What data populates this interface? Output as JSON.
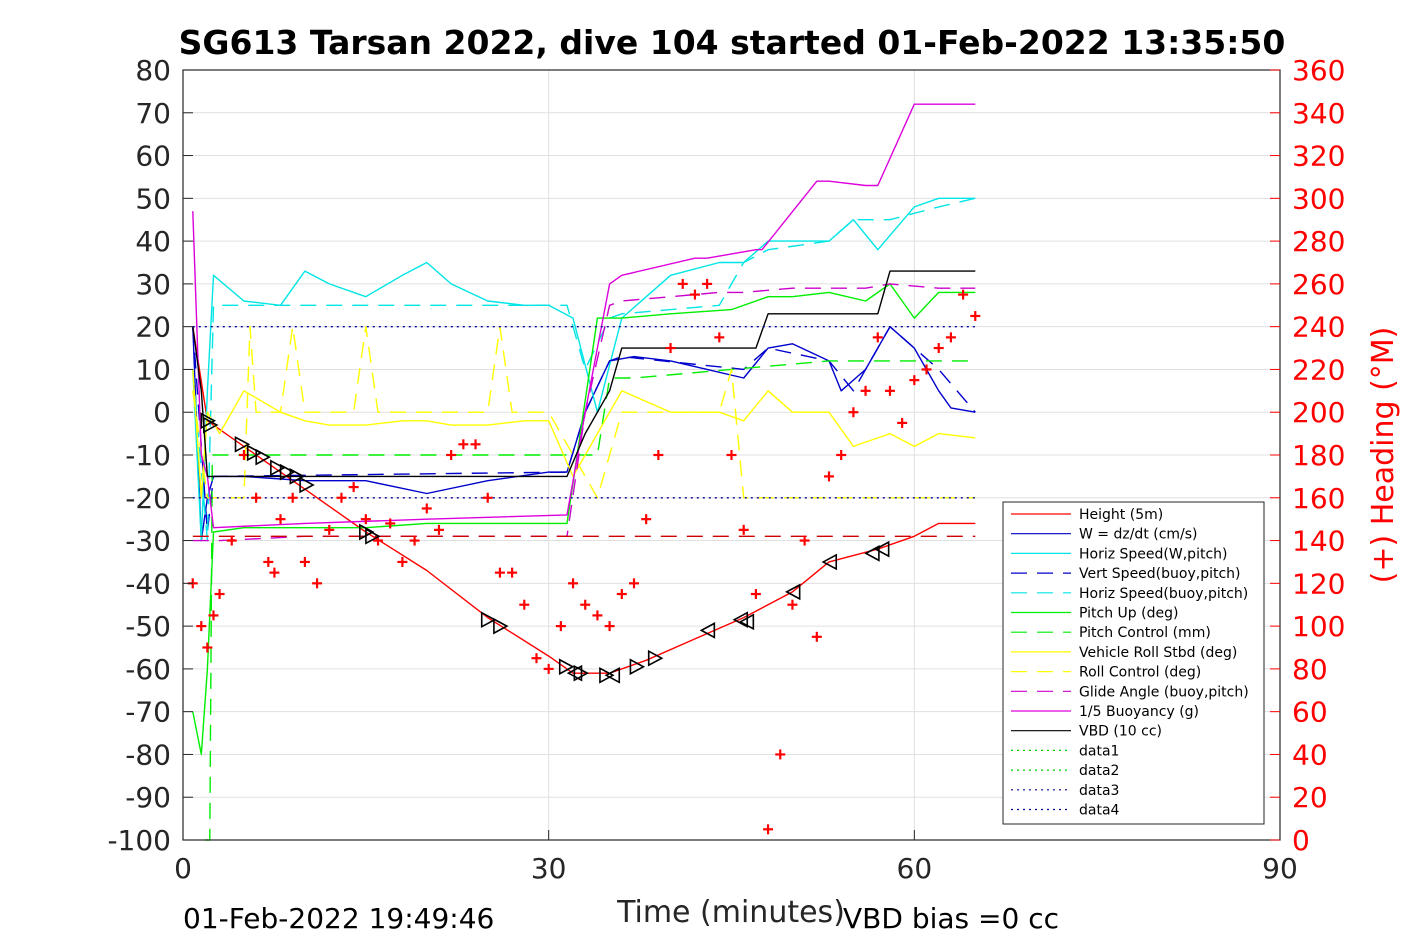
{
  "chart_data": {
    "type": "line",
    "title": "SG613 Tarsan 2022, dive 104 started 01-Feb-2022 13:35:50",
    "xlabel": "Time (minutes)",
    "ylabel": "",
    "y2label": "(+) Heading (°M)",
    "xlim": [
      0,
      90
    ],
    "ylim": [
      -100,
      80
    ],
    "y2lim": [
      0,
      360
    ],
    "xticks": [
      "0",
      "30",
      "60",
      "90"
    ],
    "yticks": [
      "80",
      "70",
      "60",
      "50",
      "40",
      "30",
      "20",
      "10",
      "0",
      "-10",
      "-20",
      "-30",
      "-40",
      "-50",
      "-60",
      "-70",
      "-80",
      "-90",
      "-100"
    ],
    "y2ticks": [
      "360",
      "340",
      "320",
      "300",
      "280",
      "260",
      "240",
      "220",
      "200",
      "180",
      "160",
      "140",
      "120",
      "100",
      "80",
      "60",
      "40",
      "20",
      "0"
    ],
    "grid": true,
    "legend_position": "bottom-right",
    "footer_left": "01-Feb-2022 19:49:46",
    "footer_right": "VBD bias =0 cc",
    "series": [
      {
        "name": "Height (5m)",
        "color": "#ff0000",
        "style": "solid",
        "x": [
          0.8,
          2,
          5,
          10,
          15,
          20,
          25,
          30,
          32,
          35,
          38,
          42,
          46,
          50,
          53,
          57,
          60,
          62,
          65
        ],
        "y": [
          20,
          -2,
          -8,
          -18,
          -28,
          -37,
          -48,
          -57,
          -61,
          -61,
          -58,
          -53,
          -48,
          -42,
          -35,
          -32,
          -29,
          -26,
          -26
        ]
      },
      {
        "name": "W = dz/dt (cm/s)",
        "color": "#0000cc",
        "style": "solid",
        "x": [
          0.8,
          1.5,
          2,
          2.5,
          5,
          10,
          15,
          20,
          25,
          30,
          31.5,
          33,
          35,
          37,
          40,
          43,
          46,
          48,
          50,
          53,
          54,
          56,
          58,
          60,
          62,
          63,
          65
        ],
        "y": [
          20,
          -30,
          -20,
          -15,
          -15,
          -16,
          -16,
          -19,
          -16,
          -14,
          -14,
          0,
          12,
          13,
          12,
          10,
          8,
          15,
          16,
          12,
          5,
          10,
          20,
          15,
          5,
          1,
          0
        ]
      },
      {
        "name": "Horiz Speed(W,pitch)",
        "color": "#00e5e5",
        "style": "solid",
        "x": [
          0.8,
          1.5,
          2,
          2.5,
          5,
          8,
          10,
          12,
          15,
          18,
          20,
          22,
          25,
          28,
          30,
          32,
          34,
          36,
          40,
          44,
          46,
          48,
          50,
          53,
          55,
          57,
          60,
          62,
          65
        ],
        "y": [
          10,
          -30,
          5,
          32,
          26,
          25,
          33,
          30,
          27,
          32,
          35,
          30,
          26,
          25,
          25,
          22,
          0,
          22,
          32,
          35,
          35,
          40,
          40,
          40,
          45,
          38,
          48,
          50,
          50
        ]
      },
      {
        "name": "Vert Speed(buoy,pitch)",
        "color": "#0000cc",
        "style": "dash",
        "x": [
          0.8,
          2,
          2.5,
          31.5,
          33,
          35,
          36,
          46,
          48,
          53,
          55,
          58,
          62,
          65
        ],
        "y": [
          20,
          -28,
          -15,
          -14,
          0,
          12,
          13,
          10,
          15,
          12,
          5,
          20,
          10,
          0
        ]
      },
      {
        "name": "Horiz Speed(buoy,pitch)",
        "color": "#00e5e5",
        "style": "dash",
        "x": [
          0.8,
          2,
          2.5,
          10,
          31.5,
          33,
          35,
          36,
          44,
          46,
          48,
          53,
          55,
          58,
          62,
          65
        ],
        "y": [
          10,
          -30,
          25,
          25,
          25,
          10,
          22,
          23,
          25,
          35,
          38,
          40,
          45,
          45,
          48,
          50
        ]
      },
      {
        "name": "Pitch Up (deg)",
        "color": "#00ee00",
        "style": "solid",
        "x": [
          0.8,
          1.5,
          2,
          2.5,
          5,
          10,
          15,
          20,
          25,
          30,
          31.5,
          34,
          36,
          40,
          45,
          48,
          50,
          53,
          56,
          58,
          60,
          62,
          65
        ],
        "y": [
          -70,
          -80,
          -60,
          -28,
          -27,
          -27,
          -27,
          -26,
          -26,
          -26,
          -26,
          22,
          22,
          23,
          24,
          27,
          27,
          28,
          26,
          30,
          22,
          28,
          28
        ]
      },
      {
        "name": "Pitch Control (mm)",
        "color": "#00ee00",
        "style": "dash",
        "x": [
          1.8,
          2.2,
          2.4,
          2.6,
          34,
          35,
          37,
          53,
          55,
          65
        ],
        "y": [
          -100,
          -100,
          -10,
          -10,
          -10,
          8,
          8,
          12,
          12,
          12
        ]
      },
      {
        "name": "Vehicle Roll Stbd (deg)",
        "color": "#ffff00",
        "style": "solid",
        "x": [
          0.8,
          1.5,
          2,
          3,
          5,
          8,
          10,
          12,
          15,
          18,
          20,
          22,
          25,
          28,
          30,
          32,
          34,
          36,
          40,
          44,
          46,
          48,
          50,
          53,
          55,
          58,
          60,
          62,
          65
        ],
        "y": [
          10,
          -20,
          0,
          -5,
          5,
          0,
          -2,
          -3,
          -3,
          -2,
          -2,
          -3,
          -3,
          -2,
          -2,
          -15,
          -5,
          5,
          0,
          0,
          -2,
          5,
          0,
          0,
          -8,
          -5,
          -8,
          -5,
          -6
        ]
      },
      {
        "name": "Roll Control (deg)",
        "color": "#ffff00",
        "style": "dash",
        "x": [
          0.8,
          2,
          5,
          5.5,
          6,
          8,
          9,
          10,
          14,
          15,
          16,
          25,
          26,
          27,
          30,
          34,
          36,
          37,
          44,
          45,
          46,
          48,
          65
        ],
        "y": [
          5,
          -20,
          -20,
          20,
          0,
          0,
          20,
          0,
          0,
          20,
          0,
          0,
          20,
          0,
          0,
          -20,
          0,
          0,
          0,
          10,
          -20,
          -20,
          -20
        ]
      },
      {
        "name": "Glide Angle (buoy,pitch)",
        "color": "#cc00cc",
        "style": "dash",
        "x": [
          0.8,
          2,
          3,
          10,
          20,
          30,
          31.5,
          33,
          35,
          36,
          40,
          44,
          46,
          50,
          53,
          56,
          58,
          62,
          65
        ],
        "y": [
          -30,
          -30,
          -30,
          -29,
          -29,
          -29,
          -29,
          0,
          25,
          26,
          27,
          28,
          28,
          29,
          29,
          29,
          30,
          29,
          29
        ]
      },
      {
        "name": "1/5 Buoyancy (g)",
        "color": "#dd00dd",
        "style": "solid",
        "x": [
          0.8,
          1.5,
          2,
          2.5,
          10,
          20,
          31.5,
          33,
          35,
          36,
          42,
          43,
          47,
          47.5,
          52,
          53,
          56,
          57,
          60,
          65
        ],
        "y": [
          47,
          -10,
          -15,
          -27,
          -26,
          -25,
          -24,
          0,
          30,
          32,
          36,
          36,
          38,
          38,
          54,
          54,
          53,
          53,
          72,
          72
        ]
      },
      {
        "name": "VBD (10 cc)",
        "color": "#000000",
        "style": "solid",
        "x": [
          0.8,
          1.5,
          2,
          4,
          10,
          20,
          31.5,
          33,
          35,
          36,
          42,
          43,
          47,
          48,
          52,
          53,
          56,
          57,
          58,
          65
        ],
        "y": [
          20,
          5,
          -15,
          -15,
          -15,
          -15,
          -15,
          -5,
          5,
          15,
          15,
          15,
          15,
          23,
          23,
          23,
          23,
          23,
          33,
          33
        ]
      },
      {
        "name": "data1",
        "color": "#00cc00",
        "style": "dot",
        "x": [],
        "y": []
      },
      {
        "name": "data2",
        "color": "#00cc00",
        "style": "dot",
        "x": [],
        "y": []
      },
      {
        "name": "data3",
        "color": "#000099",
        "style": "dot",
        "x": [
          0.8,
          65
        ],
        "y": [
          20,
          20
        ]
      },
      {
        "name": "data4",
        "color": "#000099",
        "style": "dot",
        "x": [
          0.8,
          65
        ],
        "y": [
          -20,
          -20
        ]
      },
      {
        "name": "",
        "color": "#cc0000",
        "style": "dash",
        "x": [
          0.8,
          65
        ],
        "y": [
          -29,
          -29
        ]
      }
    ],
    "heading": {
      "color": "#ff0000",
      "marker": "+",
      "x": [
        0.8,
        1.5,
        2,
        2.5,
        3,
        4,
        5,
        6,
        7,
        7.5,
        8,
        9,
        10,
        11,
        12,
        13,
        14,
        15,
        16,
        17,
        18,
        19,
        20,
        21,
        22,
        23,
        24,
        25,
        26,
        27,
        28,
        29,
        30,
        31,
        32,
        33,
        34,
        35,
        36,
        37,
        38,
        39,
        40,
        41,
        42,
        43,
        44,
        45,
        46,
        47,
        48,
        49,
        50,
        51,
        52,
        53,
        54,
        55,
        56,
        57,
        58,
        59,
        60,
        61,
        62,
        63,
        64,
        65
      ],
      "y": [
        120,
        100,
        90,
        105,
        115,
        140,
        180,
        160,
        130,
        125,
        150,
        160,
        130,
        120,
        145,
        160,
        165,
        150,
        140,
        148,
        130,
        140,
        155,
        145,
        180,
        185,
        185,
        160,
        125,
        125,
        110,
        85,
        80,
        100,
        120,
        110,
        105,
        100,
        115,
        120,
        150,
        180,
        230,
        260,
        255,
        260,
        235,
        180,
        145,
        115,
        5,
        40,
        110,
        140,
        95,
        170,
        180,
        200,
        210,
        235,
        210,
        195,
        215,
        220,
        230,
        235,
        255,
        245
      ]
    },
    "markers": {
      "color": "#000000",
      "dive_x": [
        2,
        2.2,
        4.8,
        5.8,
        6.5,
        7.7,
        8.5,
        9.3,
        10.1,
        15,
        15.5,
        25,
        26,
        31.4,
        32.6,
        34.7,
        37.2,
        38.7
      ],
      "dive_y": [
        -2,
        -3,
        -7.5,
        -9.5,
        -10.5,
        -13,
        -14,
        -15,
        -17,
        -28,
        -29,
        -48.5,
        -50,
        -59.5,
        -61,
        -61.5,
        -59.5,
        -57.5
      ],
      "climb_x": [
        32.2,
        35.3,
        43.1,
        45.8,
        46.3,
        50.1,
        53.1,
        56.6,
        57.4
      ],
      "climb_y": [
        -61,
        -61.5,
        -51,
        -48.5,
        -49,
        -42,
        -35,
        -33,
        -32
      ]
    }
  }
}
